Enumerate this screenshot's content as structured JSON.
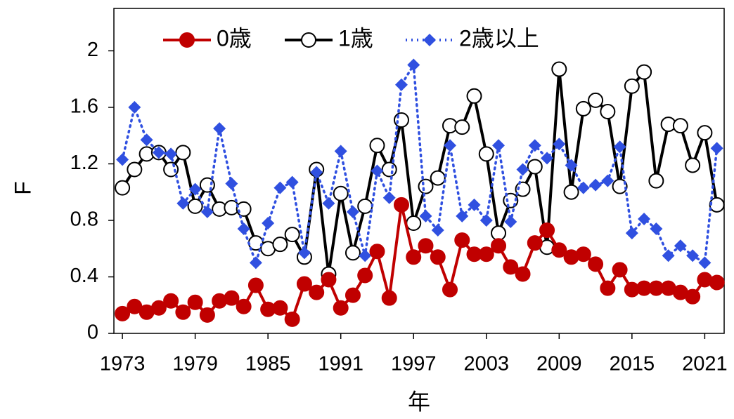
{
  "chart_data": {
    "type": "line",
    "xlabel": "年",
    "ylabel": "F",
    "x": [
      1973,
      1974,
      1975,
      1976,
      1977,
      1978,
      1979,
      1980,
      1981,
      1982,
      1983,
      1984,
      1985,
      1986,
      1987,
      1988,
      1989,
      1990,
      1991,
      1992,
      1993,
      1994,
      1995,
      1996,
      1997,
      1998,
      1999,
      2000,
      2001,
      2002,
      2003,
      2004,
      2005,
      2006,
      2007,
      2008,
      2009,
      2010,
      2011,
      2012,
      2013,
      2014,
      2015,
      2016,
      2017,
      2018,
      2019,
      2020,
      2021,
      2022
    ],
    "series": [
      {
        "name": "0歳",
        "color": "#c00000",
        "marker": "circle",
        "marker_fill": "#c00000",
        "linestyle": "solid",
        "values": [
          0.14,
          0.19,
          0.15,
          0.18,
          0.23,
          0.15,
          0.22,
          0.13,
          0.23,
          0.25,
          0.19,
          0.34,
          0.17,
          0.18,
          0.1,
          0.35,
          0.29,
          0.38,
          0.18,
          0.27,
          0.41,
          0.58,
          0.25,
          0.91,
          0.54,
          0.62,
          0.54,
          0.31,
          0.66,
          0.56,
          0.56,
          0.62,
          0.47,
          0.42,
          0.64,
          0.73,
          0.59,
          0.54,
          0.56,
          0.49,
          0.32,
          0.45,
          0.31,
          0.32,
          0.32,
          0.32,
          0.29,
          0.26,
          0.38,
          0.36
        ]
      },
      {
        "name": "1歳",
        "color": "#000000",
        "marker": "circle",
        "marker_fill": "#ffffff",
        "linestyle": "solid",
        "values": [
          1.03,
          1.16,
          1.27,
          1.28,
          1.16,
          1.28,
          0.9,
          1.05,
          0.88,
          0.89,
          0.88,
          0.64,
          0.6,
          0.63,
          0.7,
          0.54,
          1.16,
          0.42,
          0.99,
          0.57,
          0.9,
          1.33,
          1.16,
          1.51,
          0.78,
          1.04,
          1.1,
          1.47,
          1.46,
          1.68,
          1.27,
          0.71,
          0.94,
          1.02,
          1.18,
          0.61,
          1.87,
          1.0,
          1.59,
          1.65,
          1.57,
          1.04,
          1.75,
          1.85,
          1.08,
          1.48,
          1.47,
          1.19,
          1.42,
          0.91
        ]
      },
      {
        "name": "2歳以上",
        "color": "#3050e0",
        "marker": "diamond",
        "marker_fill": "#3050e0",
        "linestyle": "dotted",
        "values": [
          1.23,
          1.6,
          1.37,
          1.28,
          1.27,
          0.92,
          1.02,
          0.86,
          1.45,
          1.06,
          0.74,
          0.5,
          0.78,
          1.03,
          1.07,
          0.57,
          1.14,
          0.92,
          1.29,
          0.86,
          0.55,
          1.15,
          0.96,
          1.76,
          1.9,
          0.83,
          0.73,
          1.33,
          0.83,
          0.91,
          0.8,
          1.33,
          0.79,
          1.16,
          1.33,
          1.24,
          1.34,
          1.19,
          1.03,
          1.05,
          1.08,
          1.32,
          0.71,
          0.81,
          0.74,
          0.55,
          0.62,
          0.55,
          0.5,
          1.31
        ]
      }
    ],
    "xlim": [
      1972.3,
      2022.6
    ],
    "xticks": [
      1973,
      1979,
      1985,
      1991,
      1997,
      2003,
      2009,
      2015,
      2021
    ],
    "ylim": [
      0,
      2.3
    ],
    "yticks": [
      0,
      0.4,
      0.8,
      1.2,
      1.6,
      2
    ],
    "grid": false,
    "legend": "top-left"
  }
}
